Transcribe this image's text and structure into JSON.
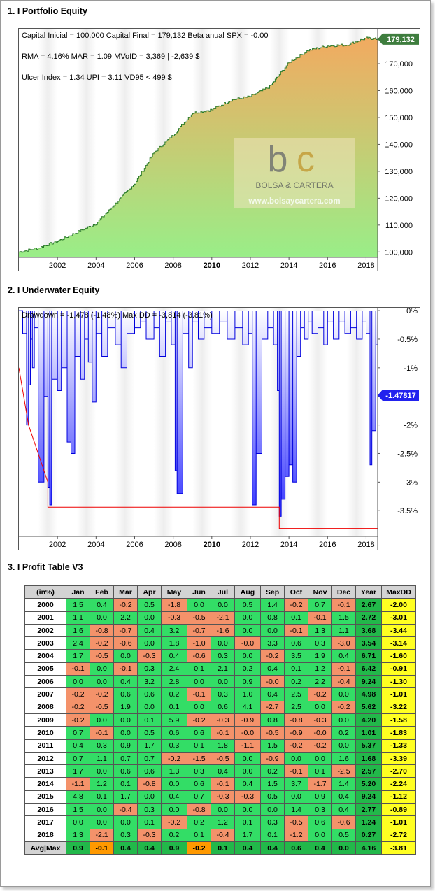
{
  "sections": {
    "s1": "1. I Portfolio Equity",
    "s2": "2. I Underwater Equity",
    "s3": "3. I Profit Table V3"
  },
  "equity": {
    "stats_line1": "Capital Inicial = 100,000  Capital Final = 179,132  Beta anual SPX = -0.00",
    "stats_line2": "RMA = 4.16%   MAR = 1.09   MVoID = 3,369 | -2,639 $",
    "stats_line3": "Ulcer Index = 1.34   UPI = 3.11   VD95 < 499 $",
    "last_value_label": "179,132",
    "watermark_line1": "BOLSA & CARTERA",
    "watermark_line2": "www.bolsaycartera.com"
  },
  "underwater": {
    "stats_line1": "Drawdown = -1,478 (-1.48%)       Max DD = -3,814 (-3.81%)",
    "last_value_label": "-1.47817"
  },
  "chart_data": [
    {
      "type": "area",
      "series": [
        {
          "x": [
            2000.0,
            2001.0,
            2002.0,
            2003.0,
            2004.0,
            2005.0,
            2006.0,
            2007.0,
            2008.0,
            2009.0,
            2010.0,
            2011.0,
            2012.0,
            2013.0,
            2014.0,
            2015.0,
            2016.0,
            2017.0,
            2018.0,
            2018.6
          ],
          "values": [
            100000,
            101500,
            104000,
            107300,
            110600,
            118000,
            125500,
            137000,
            143500,
            151700,
            152900,
            156500,
            157800,
            161500,
            170500,
            175000,
            176600,
            177000,
            179500,
            179132
          ]
        }
      ],
      "ylim": [
        98000,
        183000
      ],
      "xlim": [
        2000.0,
        2018.6
      ],
      "yticks": [
        100000,
        110000,
        120000,
        130000,
        140000,
        150000,
        160000,
        170000
      ],
      "ytick_labels": [
        "100,000",
        "110,000",
        "120,000",
        "130,000",
        "140,000",
        "150,000",
        "160,000",
        "170,000"
      ],
      "xticks": [
        2002,
        2004,
        2006,
        2008,
        2010,
        2012,
        2014,
        2016,
        2018
      ],
      "xtick_labels": [
        "2002",
        "2004",
        "2006",
        "2008",
        "2010",
        "2012",
        "2014",
        "2016",
        "2018"
      ],
      "colors": {
        "bottom": "#99ee88",
        "top": "#f2aa60",
        "line": "#2a7a2a",
        "label_bg": "#3e7d3e"
      }
    },
    {
      "type": "area",
      "series": [
        {
          "x": [
            2000.0,
            2000.2,
            2000.4,
            2000.5,
            2000.6,
            2000.7,
            2000.8,
            2001.0,
            2001.3,
            2001.5,
            2001.6,
            2001.7,
            2002.0,
            2002.2,
            2002.5,
            2002.7,
            2002.9,
            2003.2,
            2003.4,
            2003.6,
            2003.8,
            2004.0,
            2004.3,
            2004.6,
            2005.0,
            2005.3,
            2005.6,
            2006.0,
            2006.3,
            2006.6,
            2007.0,
            2007.3,
            2007.6,
            2007.9,
            2008.1,
            2008.2,
            2008.5,
            2008.8,
            2009.0,
            2009.3,
            2009.6,
            2010.0,
            2010.4,
            2010.8,
            2011.2,
            2011.6,
            2011.9,
            2012.1,
            2012.3,
            2012.6,
            2012.9,
            2013.2,
            2013.4,
            2013.5,
            2013.6,
            2013.8,
            2014.0,
            2014.2,
            2014.4,
            2014.6,
            2014.8,
            2015.0,
            2015.2,
            2015.5,
            2015.8,
            2016.0,
            2016.3,
            2016.6,
            2016.9,
            2017.2,
            2017.5,
            2017.8,
            2018.0,
            2018.2,
            2018.3,
            2018.5,
            2018.6
          ],
          "values": [
            0,
            -0.4,
            -2.0,
            -1.3,
            -0.5,
            -1.0,
            -0.3,
            -3.0,
            -1.5,
            -3.1,
            -3.4,
            -1.2,
            -1.4,
            -1.0,
            -2.3,
            -2.5,
            -0.8,
            -1.2,
            -0.5,
            -0.9,
            -1.6,
            -0.4,
            -0.8,
            -0.3,
            -0.6,
            -1.0,
            -0.4,
            -0.3,
            -0.2,
            -0.5,
            -0.3,
            -0.8,
            -0.2,
            -0.6,
            -2.8,
            -3.2,
            -0.4,
            -1.0,
            -0.2,
            -0.5,
            -0.3,
            -0.4,
            -0.2,
            -0.5,
            -0.3,
            -0.6,
            -0.4,
            -3.4,
            -2.5,
            -0.5,
            -0.3,
            -0.6,
            -1.4,
            -3.6,
            -3.3,
            -2.9,
            -2.7,
            -3.0,
            -0.8,
            -0.3,
            -0.5,
            -0.2,
            -0.4,
            -0.3,
            -0.6,
            -0.2,
            -0.5,
            -0.2,
            -0.4,
            -0.3,
            -0.5,
            -0.2,
            -0.4,
            -2.7,
            -2.1,
            -0.6,
            -1.48
          ]
        },
        {
          "name": "Max DD",
          "x": [
            2000.0,
            2000.5,
            2000.5,
            2001.5,
            2001.5,
            2013.5,
            2013.5,
            2018.6
          ],
          "values": [
            -1.0,
            -2.0,
            -2.0,
            -3.0,
            -3.44,
            -3.44,
            -3.81,
            -3.81
          ]
        }
      ],
      "ylim": [
        -3.95,
        0.05
      ],
      "xlim": [
        2000.0,
        2018.6
      ],
      "yticks": [
        0,
        -0.5,
        -1,
        -1.5,
        -2,
        -2.5,
        -3,
        -3.5
      ],
      "ytick_labels": [
        "0%",
        "-0.5%",
        "-1%",
        "-1.5%",
        "-2%",
        "-2.5%",
        "-3%",
        "-3.5%"
      ],
      "xticks": [
        2002,
        2004,
        2006,
        2008,
        2010,
        2012,
        2014,
        2016,
        2018
      ],
      "xtick_labels": [
        "2002",
        "2004",
        "2006",
        "2008",
        "2010",
        "2012",
        "2014",
        "2016",
        "2018"
      ],
      "colors": {
        "fill_top": "#ffffff",
        "fill_bottom": "#3535ff",
        "line": "#0000dd",
        "maxdd": "#ee0000",
        "label_bg": "#2222ee"
      }
    },
    {
      "type": "table",
      "headers": [
        "(in%)",
        "Jan",
        "Feb",
        "Mar",
        "Apr",
        "May",
        "Jun",
        "Jul",
        "Aug",
        "Sep",
        "Oct",
        "Nov",
        "Dec",
        "Year",
        "MaxDD"
      ],
      "rows": [
        [
          "2000",
          "1.5",
          "0.4",
          "-0.2",
          "0.5",
          "-1.8",
          "0.0",
          "0.0",
          "0.5",
          "1.4",
          "-0.2",
          "0.7",
          "-0.1",
          "2.67",
          "-2.00"
        ],
        [
          "2001",
          "1.1",
          "0.0",
          "2.2",
          "0.0",
          "-0.3",
          "-0.5",
          "-2.1",
          "0.0",
          "0.8",
          "0.1",
          "-0.1",
          "1.5",
          "2.72",
          "-3.01"
        ],
        [
          "2002",
          "1.6",
          "-0.8",
          "-0.7",
          "0.4",
          "3.2",
          "-0.7",
          "-1.6",
          "0.0",
          "0.0",
          "-0.1",
          "1.3",
          "1.1",
          "3.68",
          "-3.44"
        ],
        [
          "2003",
          "2.4",
          "-0.2",
          "-0.6",
          "0.0",
          "1.8",
          "-1.0",
          "0.0",
          "-0.0",
          "3.3",
          "0.6",
          "0.3",
          "-3.0",
          "3.54",
          "-3.14"
        ],
        [
          "2004",
          "1.7",
          "-0.5",
          "0.0",
          "-0.3",
          "0.4",
          "-0.6",
          "0.3",
          "0.0",
          "-0.2",
          "3.5",
          "1.9",
          "0.4",
          "6.71",
          "-1.60"
        ],
        [
          "2005",
          "-0.1",
          "0.0",
          "-0.1",
          "0.3",
          "2.4",
          "0.1",
          "2.1",
          "0.2",
          "0.4",
          "0.1",
          "1.2",
          "-0.1",
          "6.42",
          "-0.91"
        ],
        [
          "2006",
          "0.0",
          "0.0",
          "0.4",
          "3.2",
          "2.8",
          "0.0",
          "0.0",
          "0.9",
          "-0.0",
          "0.2",
          "2.2",
          "-0.4",
          "9.24",
          "-1.30"
        ],
        [
          "2007",
          "-0.2",
          "-0.2",
          "0.6",
          "0.6",
          "0.2",
          "-0.1",
          "0.3",
          "1.0",
          "0.4",
          "2.5",
          "-0.2",
          "0.0",
          "4.98",
          "-1.01"
        ],
        [
          "2008",
          "-0.2",
          "-0.5",
          "1.9",
          "0.0",
          "0.1",
          "0.0",
          "0.6",
          "4.1",
          "-2.7",
          "2.5",
          "0.0",
          "-0.2",
          "5.62",
          "-3.22"
        ],
        [
          "2009",
          "-0.2",
          "0.0",
          "0.0",
          "0.1",
          "5.9",
          "-0.2",
          "-0.3",
          "-0.9",
          "0.8",
          "-0.8",
          "-0.3",
          "0.0",
          "4.20",
          "-1.58"
        ],
        [
          "2010",
          "0.7",
          "-0.1",
          "0.0",
          "0.5",
          "0.6",
          "0.6",
          "-0.1",
          "-0.0",
          "-0.5",
          "-0.9",
          "-0.0",
          "0.2",
          "1.01",
          "-1.83"
        ],
        [
          "2011",
          "0.4",
          "0.3",
          "0.9",
          "1.7",
          "0.3",
          "0.1",
          "1.8",
          "-1.1",
          "1.5",
          "-0.2",
          "-0.2",
          "0.0",
          "5.37",
          "-1.33"
        ],
        [
          "2012",
          "0.7",
          "1.1",
          "0.7",
          "0.7",
          "-0.2",
          "-1.5",
          "-0.5",
          "0.0",
          "-0.9",
          "0.0",
          "0.0",
          "1.6",
          "1.68",
          "-3.39"
        ],
        [
          "2013",
          "1.7",
          "0.0",
          "0.6",
          "0.6",
          "1.3",
          "0.3",
          "0.4",
          "0.0",
          "0.2",
          "-0.1",
          "0.1",
          "-2.5",
          "2.57",
          "-2.70"
        ],
        [
          "2014",
          "-1.1",
          "1.2",
          "0.1",
          "-0.8",
          "0.0",
          "0.6",
          "-0.1",
          "0.4",
          "1.5",
          "3.7",
          "-1.7",
          "1.4",
          "5.20",
          "-2.24"
        ],
        [
          "2015",
          "4.8",
          "0.1",
          "1.7",
          "0.0",
          "0.4",
          "0.7",
          "-0.3",
          "-0.3",
          "0.5",
          "0.0",
          "0.9",
          "0.4",
          "9.24",
          "-1.12"
        ],
        [
          "2016",
          "1.5",
          "0.0",
          "-0.4",
          "0.3",
          "0.0",
          "-0.8",
          "0.0",
          "0.0",
          "0.0",
          "1.4",
          "0.3",
          "0.4",
          "2.77",
          "-0.89"
        ],
        [
          "2017",
          "0.0",
          "0.0",
          "0.0",
          "0.1",
          "-0.2",
          "0.2",
          "1.2",
          "0.1",
          "0.3",
          "-0.5",
          "0.6",
          "-0.6",
          "1.24",
          "-1.01"
        ],
        [
          "2018",
          "1.3",
          "-2.1",
          "0.3",
          "-0.3",
          "0.2",
          "0.1",
          "-0.4",
          "1.7",
          "0.1",
          "-1.2",
          "0.0",
          "0.5",
          "0.27",
          "-2.72"
        ]
      ],
      "footer": [
        "Avg|Max",
        "0.9",
        "-0.1",
        "0.4",
        "0.4",
        "0.9",
        "-0.2",
        "0.1",
        "0.4",
        "0.4",
        "0.6",
        "0.4",
        "0.0",
        "4.16",
        "-3.81"
      ]
    }
  ]
}
